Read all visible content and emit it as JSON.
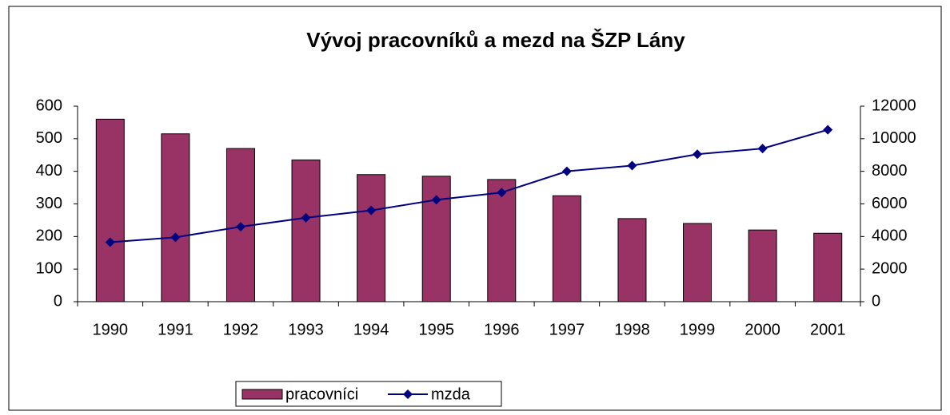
{
  "chart_data": {
    "type": "bar_line",
    "title": "Vývoj pracovníků a mezd na ŠZP Lány",
    "categories": [
      "1990",
      "1991",
      "1992",
      "1993",
      "1994",
      "1995",
      "1996",
      "1997",
      "1998",
      "1999",
      "2000",
      "2001"
    ],
    "series": [
      {
        "name": "pracovníci",
        "type": "bar",
        "color": "#993366",
        "values": [
          560,
          515,
          470,
          435,
          390,
          385,
          375,
          325,
          255,
          240,
          220,
          210
        ]
      },
      {
        "name": "mzda",
        "type": "line",
        "axis": "y2",
        "color": "#000080",
        "values": [
          3650,
          3950,
          4600,
          5150,
          5600,
          6250,
          6700,
          8000,
          8350,
          9050,
          9400,
          10550
        ]
      }
    ],
    "ylim": [
      0,
      600
    ],
    "yticks": [
      0,
      100,
      200,
      300,
      400,
      500,
      600
    ],
    "y2lim": [
      0,
      12000
    ],
    "y2ticks": [
      0,
      2000,
      4000,
      6000,
      8000,
      10000,
      12000
    ],
    "legend": "bottom"
  }
}
